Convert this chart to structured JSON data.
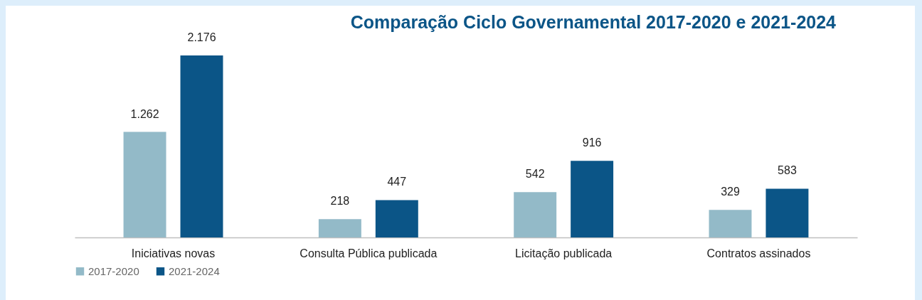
{
  "chart_data": {
    "type": "bar",
    "title": "Comparação Ciclo Governamental 2017-2020 e 2021-2024",
    "categories": [
      "Iniciativas novas",
      "Consulta Pública publicada",
      "Licitação publicada",
      "Contratos assinados"
    ],
    "series": [
      {
        "name": "2017-2020",
        "color": "#93bac8",
        "values": [
          1262,
          218,
          542,
          329
        ],
        "value_labels": [
          "1.262",
          "218",
          "542",
          "329"
        ]
      },
      {
        "name": "2021-2024",
        "color": "#0b5587",
        "values": [
          2176,
          447,
          916,
          583
        ],
        "value_labels": [
          "2.176",
          "447",
          "916",
          "583"
        ]
      }
    ],
    "legend": "bottom",
    "grid": false,
    "tick_labels": "x"
  }
}
